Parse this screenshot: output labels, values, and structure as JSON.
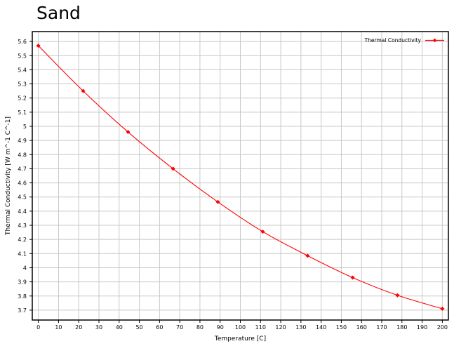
{
  "chart_data": {
    "type": "line",
    "title": "Sand",
    "xlabel": "Temperature  [C]",
    "ylabel": "Thermal Conductivity  [W m^-1 C^-1]",
    "xlim": [
      -3,
      203
    ],
    "ylim": [
      3.63,
      5.67
    ],
    "xticks": [
      0,
      10,
      20,
      30,
      40,
      50,
      60,
      70,
      80,
      90,
      100,
      110,
      120,
      130,
      140,
      150,
      160,
      170,
      180,
      190,
      200
    ],
    "yticks": [
      3.7,
      3.8,
      3.9,
      4,
      4.1,
      4.2,
      4.3,
      4.4,
      4.5,
      4.6,
      4.7,
      4.8,
      4.9,
      5,
      5.1,
      5.2,
      5.3,
      5.4,
      5.5,
      5.6
    ],
    "grid": true,
    "legend_position": "top-right",
    "series": [
      {
        "name": "Thermal Conductivity",
        "color": "#ff0000",
        "marker": "diamond",
        "x": [
          0,
          22.2,
          44.4,
          66.7,
          88.9,
          111.1,
          133.3,
          155.6,
          177.8,
          200
        ],
        "y": [
          5.57,
          5.25,
          4.96,
          4.7,
          4.465,
          4.255,
          4.085,
          3.93,
          3.805,
          3.71
        ]
      }
    ]
  }
}
